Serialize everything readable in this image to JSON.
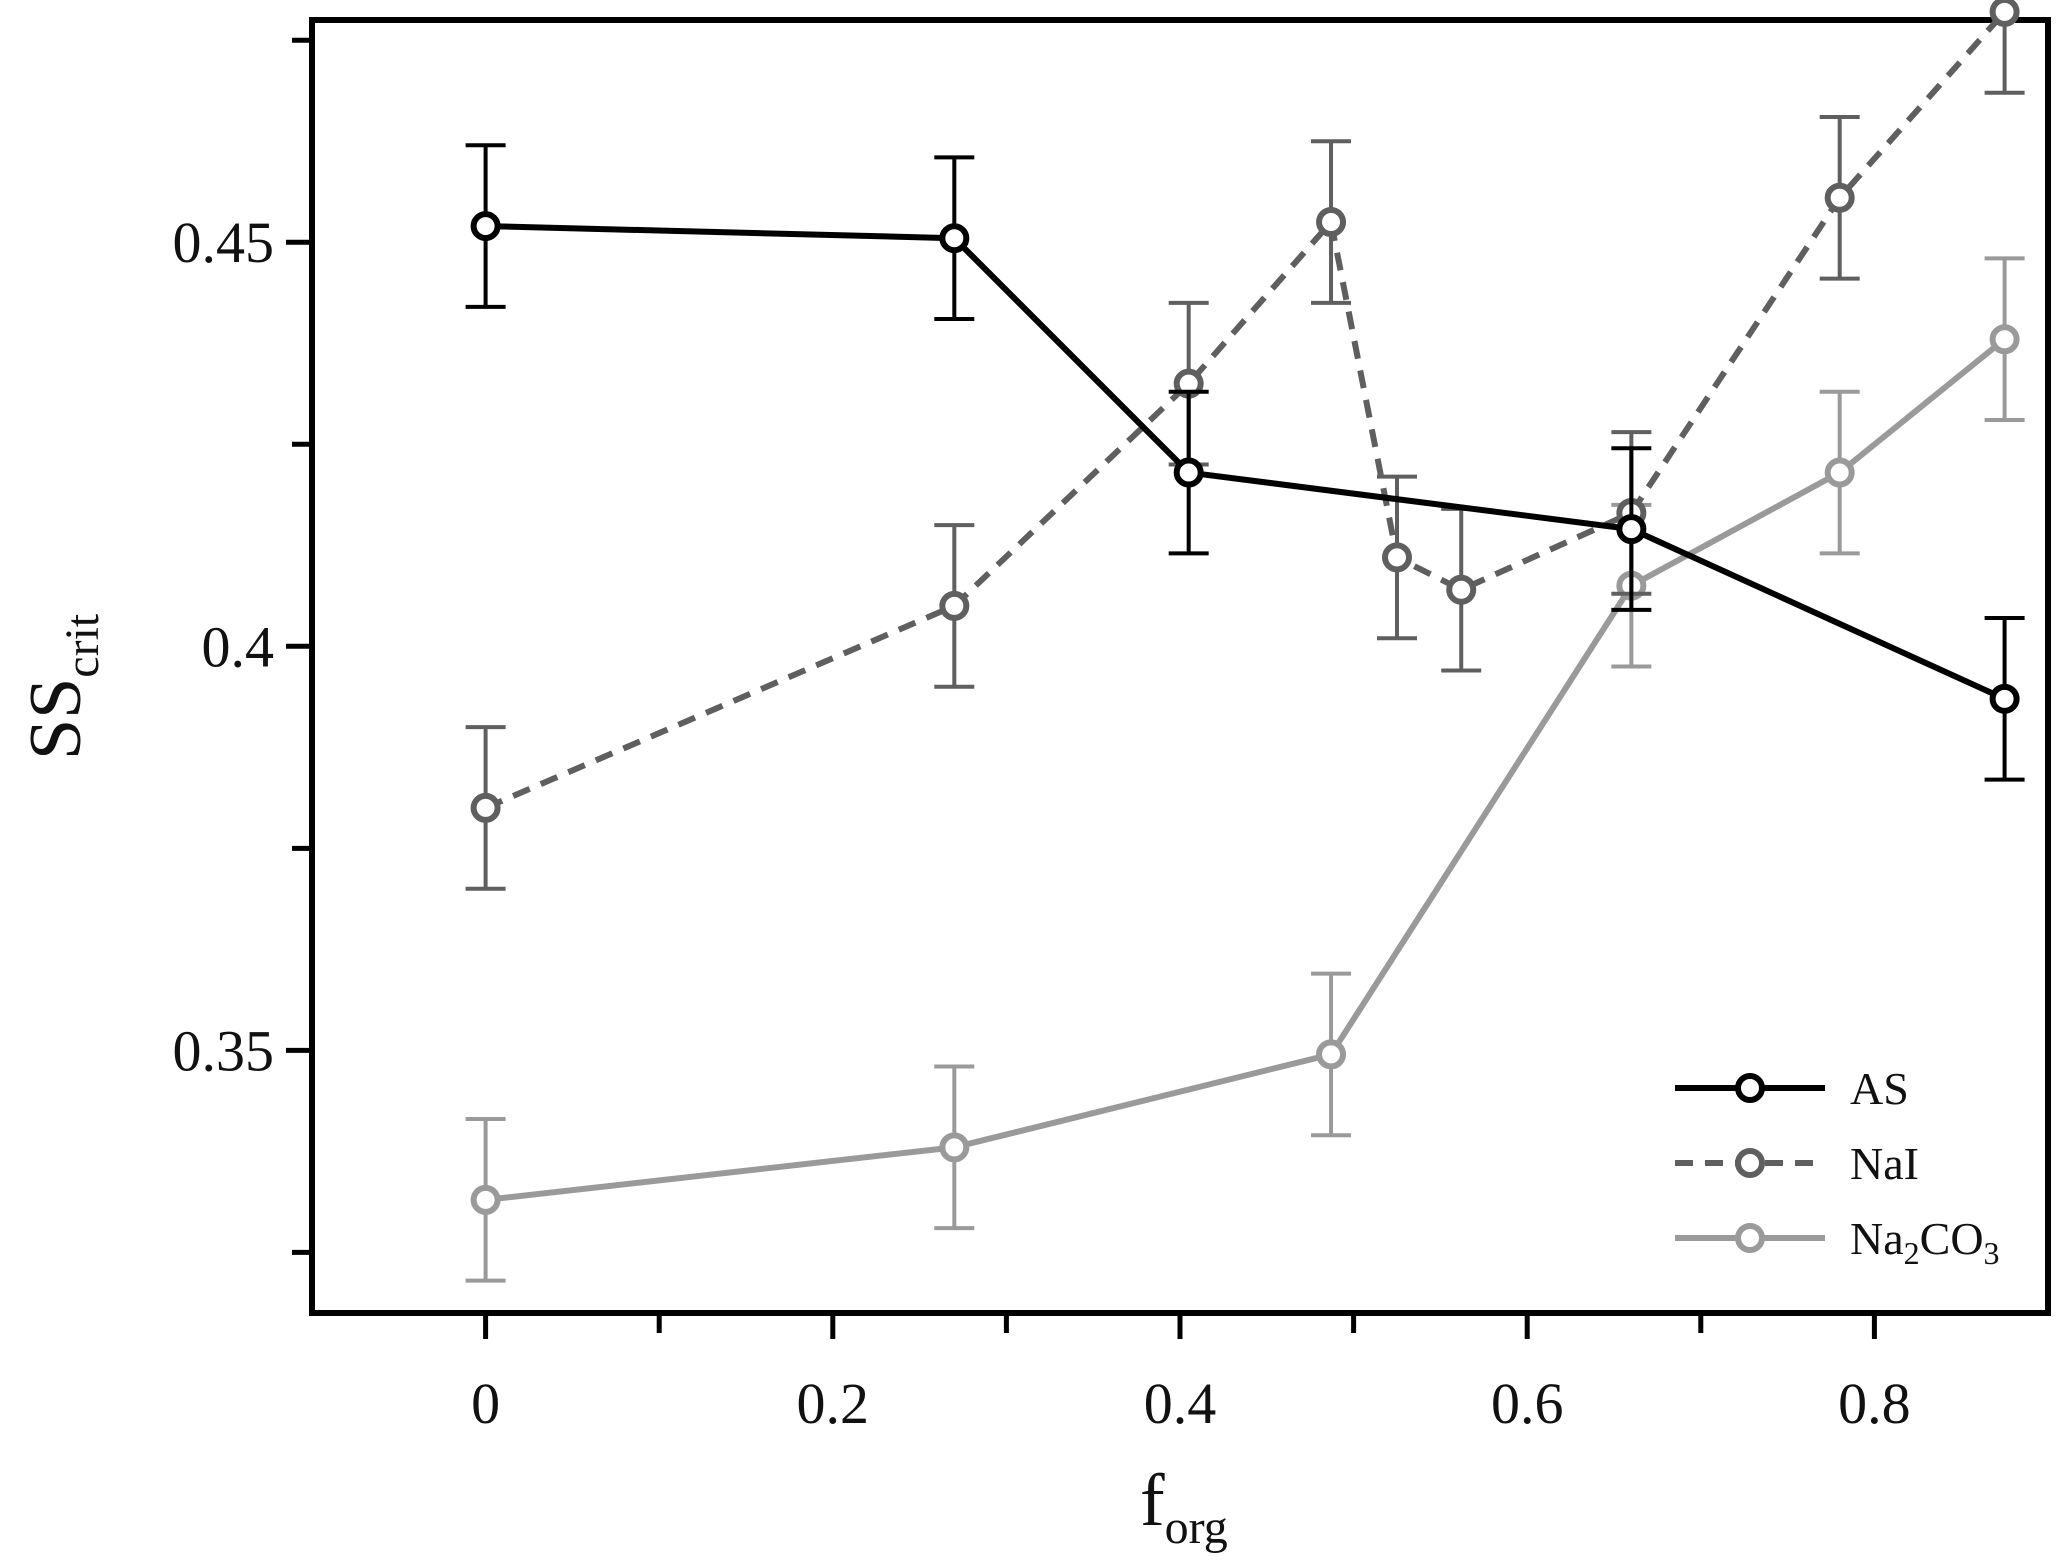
{
  "chart_data": {
    "type": "line",
    "xlabel": {
      "main": "f",
      "sub": "org"
    },
    "ylabel": {
      "main": "SS",
      "sub": "crit"
    },
    "xlim": [
      -0.1,
      0.9
    ],
    "ylim": [
      0.3175,
      0.4775
    ],
    "x_ticks": [
      0,
      0.2,
      0.4,
      0.6,
      0.8
    ],
    "x_tick_labels": [
      "0",
      "0.2",
      "0.4",
      "0.6",
      "0.8"
    ],
    "x_minor_ticks": [
      0.1,
      0.3,
      0.5,
      0.7
    ],
    "y_ticks": [
      0.35,
      0.4,
      0.45
    ],
    "y_tick_labels": [
      "0.35",
      "0.4",
      "0.45"
    ],
    "y_minor_ticks": [
      0.325,
      0.375,
      0.425,
      0.475
    ],
    "grid": false,
    "legend": "bottom-right",
    "series": [
      {
        "name": "AS",
        "name_parts": [
          {
            "t": "AS",
            "sub": false
          }
        ],
        "color": "#000000",
        "dashed": false,
        "x": [
          0,
          0.27,
          0.405,
          0.66,
          0.875
        ],
        "y": [
          0.452,
          0.4505,
          0.4215,
          0.4145,
          0.3935
        ],
        "err": [
          0.01,
          0.01,
          0.01,
          0.01,
          0.01
        ]
      },
      {
        "name": "NaI",
        "name_parts": [
          {
            "t": "NaI",
            "sub": false
          }
        ],
        "color": "#5f5f5f",
        "dashed": true,
        "x": [
          0,
          0.27,
          0.405,
          0.487,
          0.525,
          0.562,
          0.66,
          0.78,
          0.875
        ],
        "y": [
          0.38,
          0.405,
          0.4325,
          0.4525,
          0.411,
          0.407,
          0.4165,
          0.4555,
          0.4785
        ],
        "err": [
          0.01,
          0.01,
          0.01,
          0.01,
          0.01,
          0.01,
          0.01,
          0.01,
          0.01
        ]
      },
      {
        "name": "Na2CO3",
        "name_parts": [
          {
            "t": "Na",
            "sub": false
          },
          {
            "t": "2",
            "sub": true
          },
          {
            "t": "CO",
            "sub": false
          },
          {
            "t": "3",
            "sub": true
          }
        ],
        "color": "#9a9a9a",
        "dashed": false,
        "x": [
          0,
          0.27,
          0.487,
          0.66,
          0.78,
          0.875
        ],
        "y": [
          0.3315,
          0.338,
          0.3495,
          0.4075,
          0.4215,
          0.438
        ],
        "err": [
          0.01,
          0.01,
          0.01,
          0.01,
          0.01,
          0.01
        ]
      }
    ]
  }
}
